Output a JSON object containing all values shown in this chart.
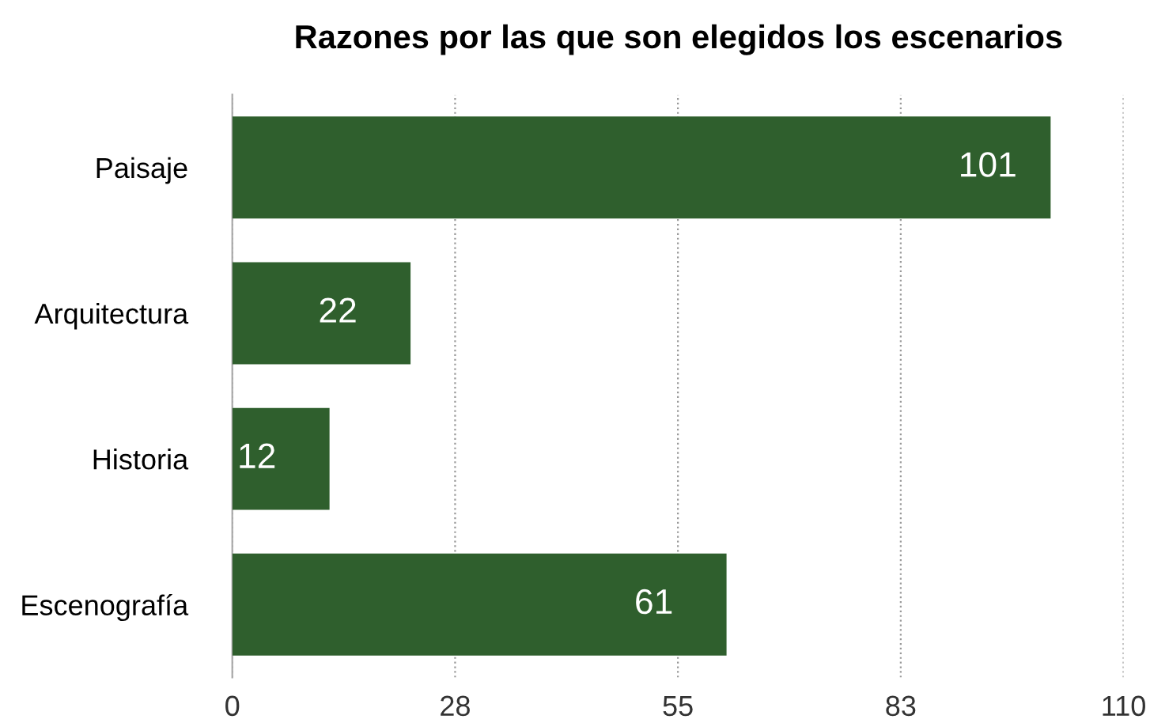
{
  "chart_data": {
    "type": "bar",
    "orientation": "horizontal",
    "title": "Razones por las que son elegidos los escenarios",
    "categories": [
      "Paisaje",
      "Arquitectura",
      "Historia",
      "Escenografía"
    ],
    "values": [
      101,
      22,
      12,
      61
    ],
    "color": "#2f5f2d",
    "xlim": [
      0,
      110
    ],
    "xticks": [
      0,
      {
        "value": 27.5,
        "label": "28"
      },
      55,
      {
        "value": 82.5,
        "label": "83"
      },
      110
    ],
    "grid": "x",
    "data_labels": true
  }
}
